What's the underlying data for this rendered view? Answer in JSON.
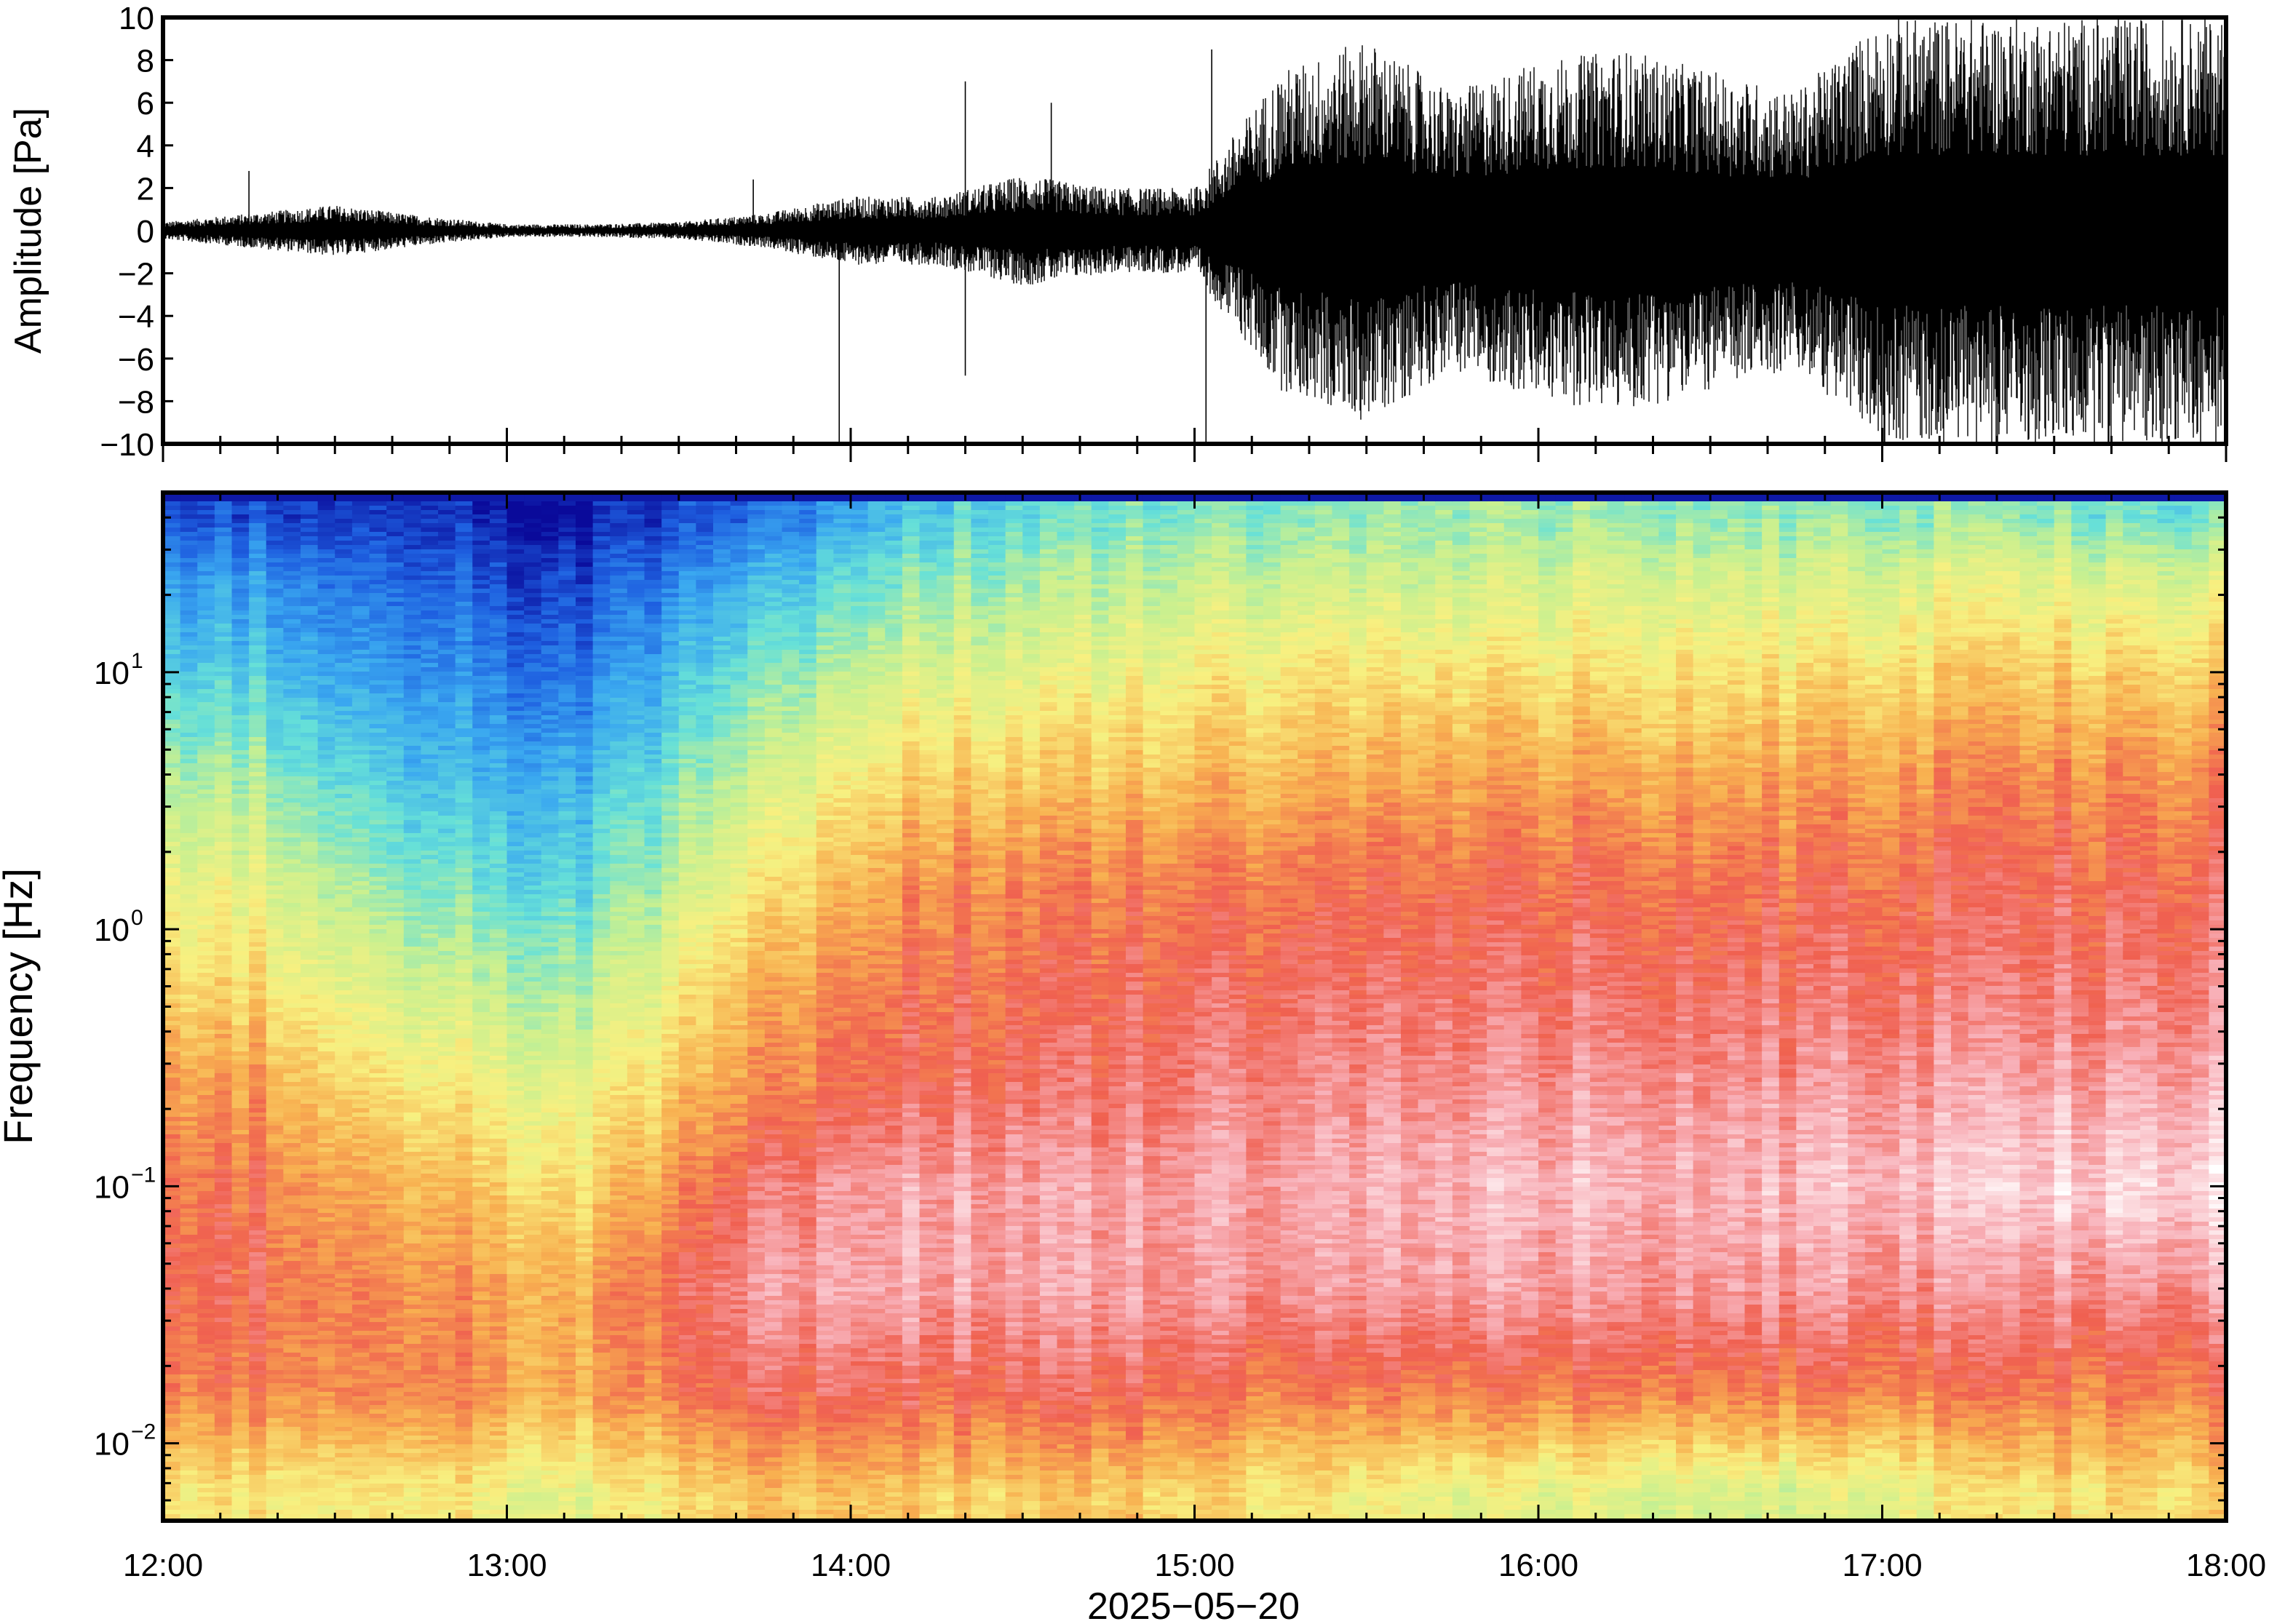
{
  "chart_data": [
    {
      "type": "line",
      "title": "",
      "xlabel": "",
      "ylabel": "Amplitude [Pa]",
      "ylim": [
        -10,
        10
      ],
      "y_ticks": [
        -10,
        -8,
        -6,
        -4,
        -2,
        0,
        2,
        4,
        6,
        8,
        10
      ],
      "y_tick_labels": [
        "−10",
        "−8",
        "−6",
        "−4",
        "−2",
        "0",
        "2",
        "4",
        "6",
        "8",
        "10"
      ],
      "xlim": [
        "12:00",
        "18:00"
      ],
      "series": [
        {
          "color": "#000000",
          "x": [
            "12:00",
            "12:15",
            "12:30",
            "12:45",
            "13:00",
            "13:15",
            "13:30",
            "13:45",
            "14:00",
            "14:15",
            "14:30",
            "14:45",
            "15:00",
            "15:15",
            "15:30",
            "15:45",
            "16:00",
            "16:15",
            "16:30",
            "16:45",
            "17:00",
            "17:15",
            "17:30",
            "17:45",
            "18:00"
          ],
          "envelope": [
            0.4,
            0.8,
            1.2,
            0.7,
            0.3,
            0.3,
            0.4,
            0.8,
            1.6,
            1.6,
            2.6,
            2.0,
            2.0,
            7.5,
            9.0,
            6.5,
            8.0,
            8.5,
            7.5,
            6.5,
            10,
            10,
            10,
            10,
            10
          ],
          "spikes": [
            {
              "x": "12:15",
              "y": 2.8
            },
            {
              "x": "13:43",
              "y": 2.4
            },
            {
              "x": "13:58",
              "y": -10
            },
            {
              "x": "14:20",
              "y": 7.0
            },
            {
              "x": "14:20",
              "y": -6.8
            },
            {
              "x": "14:35",
              "y": 6.0
            },
            {
              "x": "15:02",
              "y": -10
            },
            {
              "x": "15:03",
              "y": 8.5
            }
          ]
        }
      ],
      "grid": false
    },
    {
      "type": "heatmap",
      "title": "",
      "xlabel": "2025−05−20",
      "ylabel": "Frequency [Hz]",
      "x_ticks": [
        "12:00",
        "13:00",
        "14:00",
        "15:00",
        "16:00",
        "17:00",
        "18:00"
      ],
      "y_scale": "log",
      "ylim": [
        0.005,
        50
      ],
      "y_ticks": [
        {
          "value": 0.01,
          "base": "10",
          "exp": "−2"
        },
        {
          "value": 0.1,
          "base": "10",
          "exp": "−1"
        },
        {
          "value": 1,
          "base": "10",
          "exp": "0"
        },
        {
          "value": 10,
          "base": "10",
          "exp": "1"
        }
      ],
      "colormap": [
        "#0a0a9a",
        "#1e5fe0",
        "#3aa8f0",
        "#66e0d8",
        "#c8f090",
        "#f8f080",
        "#f8b050",
        "#f06050",
        "#f8b0b8",
        "#ffffff"
      ],
      "x_centers_hours": [
        12.25,
        12.75,
        13.25,
        13.75,
        14.25,
        14.75,
        15.25,
        15.75,
        16.25,
        16.75,
        17.25,
        17.75
      ],
      "log_freq_rows": [
        1.6,
        1.4,
        1.0,
        0.6,
        0.2,
        -0.2,
        -0.6,
        -1.0,
        -1.4,
        -1.8,
        -2.2
      ],
      "intensity": [
        [
          0.1,
          0.05,
          0.02,
          0.12,
          0.3,
          0.35,
          0.38,
          0.4,
          0.4,
          0.38,
          0.4,
          0.35
        ],
        [
          0.2,
          0.1,
          0.08,
          0.22,
          0.38,
          0.42,
          0.45,
          0.45,
          0.48,
          0.46,
          0.5,
          0.48
        ],
        [
          0.3,
          0.18,
          0.15,
          0.35,
          0.5,
          0.52,
          0.58,
          0.58,
          0.58,
          0.58,
          0.62,
          0.62
        ],
        [
          0.42,
          0.25,
          0.25,
          0.45,
          0.62,
          0.62,
          0.66,
          0.68,
          0.68,
          0.68,
          0.72,
          0.72
        ],
        [
          0.52,
          0.35,
          0.32,
          0.55,
          0.72,
          0.72,
          0.75,
          0.76,
          0.76,
          0.75,
          0.78,
          0.78
        ],
        [
          0.6,
          0.45,
          0.42,
          0.65,
          0.76,
          0.77,
          0.8,
          0.8,
          0.8,
          0.8,
          0.81,
          0.82
        ],
        [
          0.7,
          0.55,
          0.52,
          0.7,
          0.8,
          0.8,
          0.84,
          0.85,
          0.85,
          0.85,
          0.87,
          0.88
        ],
        [
          0.76,
          0.64,
          0.6,
          0.8,
          0.88,
          0.86,
          0.88,
          0.9,
          0.9,
          0.9,
          0.93,
          0.95
        ],
        [
          0.78,
          0.7,
          0.68,
          0.85,
          0.88,
          0.86,
          0.86,
          0.87,
          0.86,
          0.86,
          0.85,
          0.86
        ],
        [
          0.74,
          0.72,
          0.68,
          0.78,
          0.78,
          0.78,
          0.74,
          0.74,
          0.74,
          0.74,
          0.75,
          0.74
        ],
        [
          0.58,
          0.56,
          0.52,
          0.62,
          0.62,
          0.62,
          0.58,
          0.52,
          0.5,
          0.48,
          0.56,
          0.6
        ]
      ],
      "grid": false
    }
  ]
}
